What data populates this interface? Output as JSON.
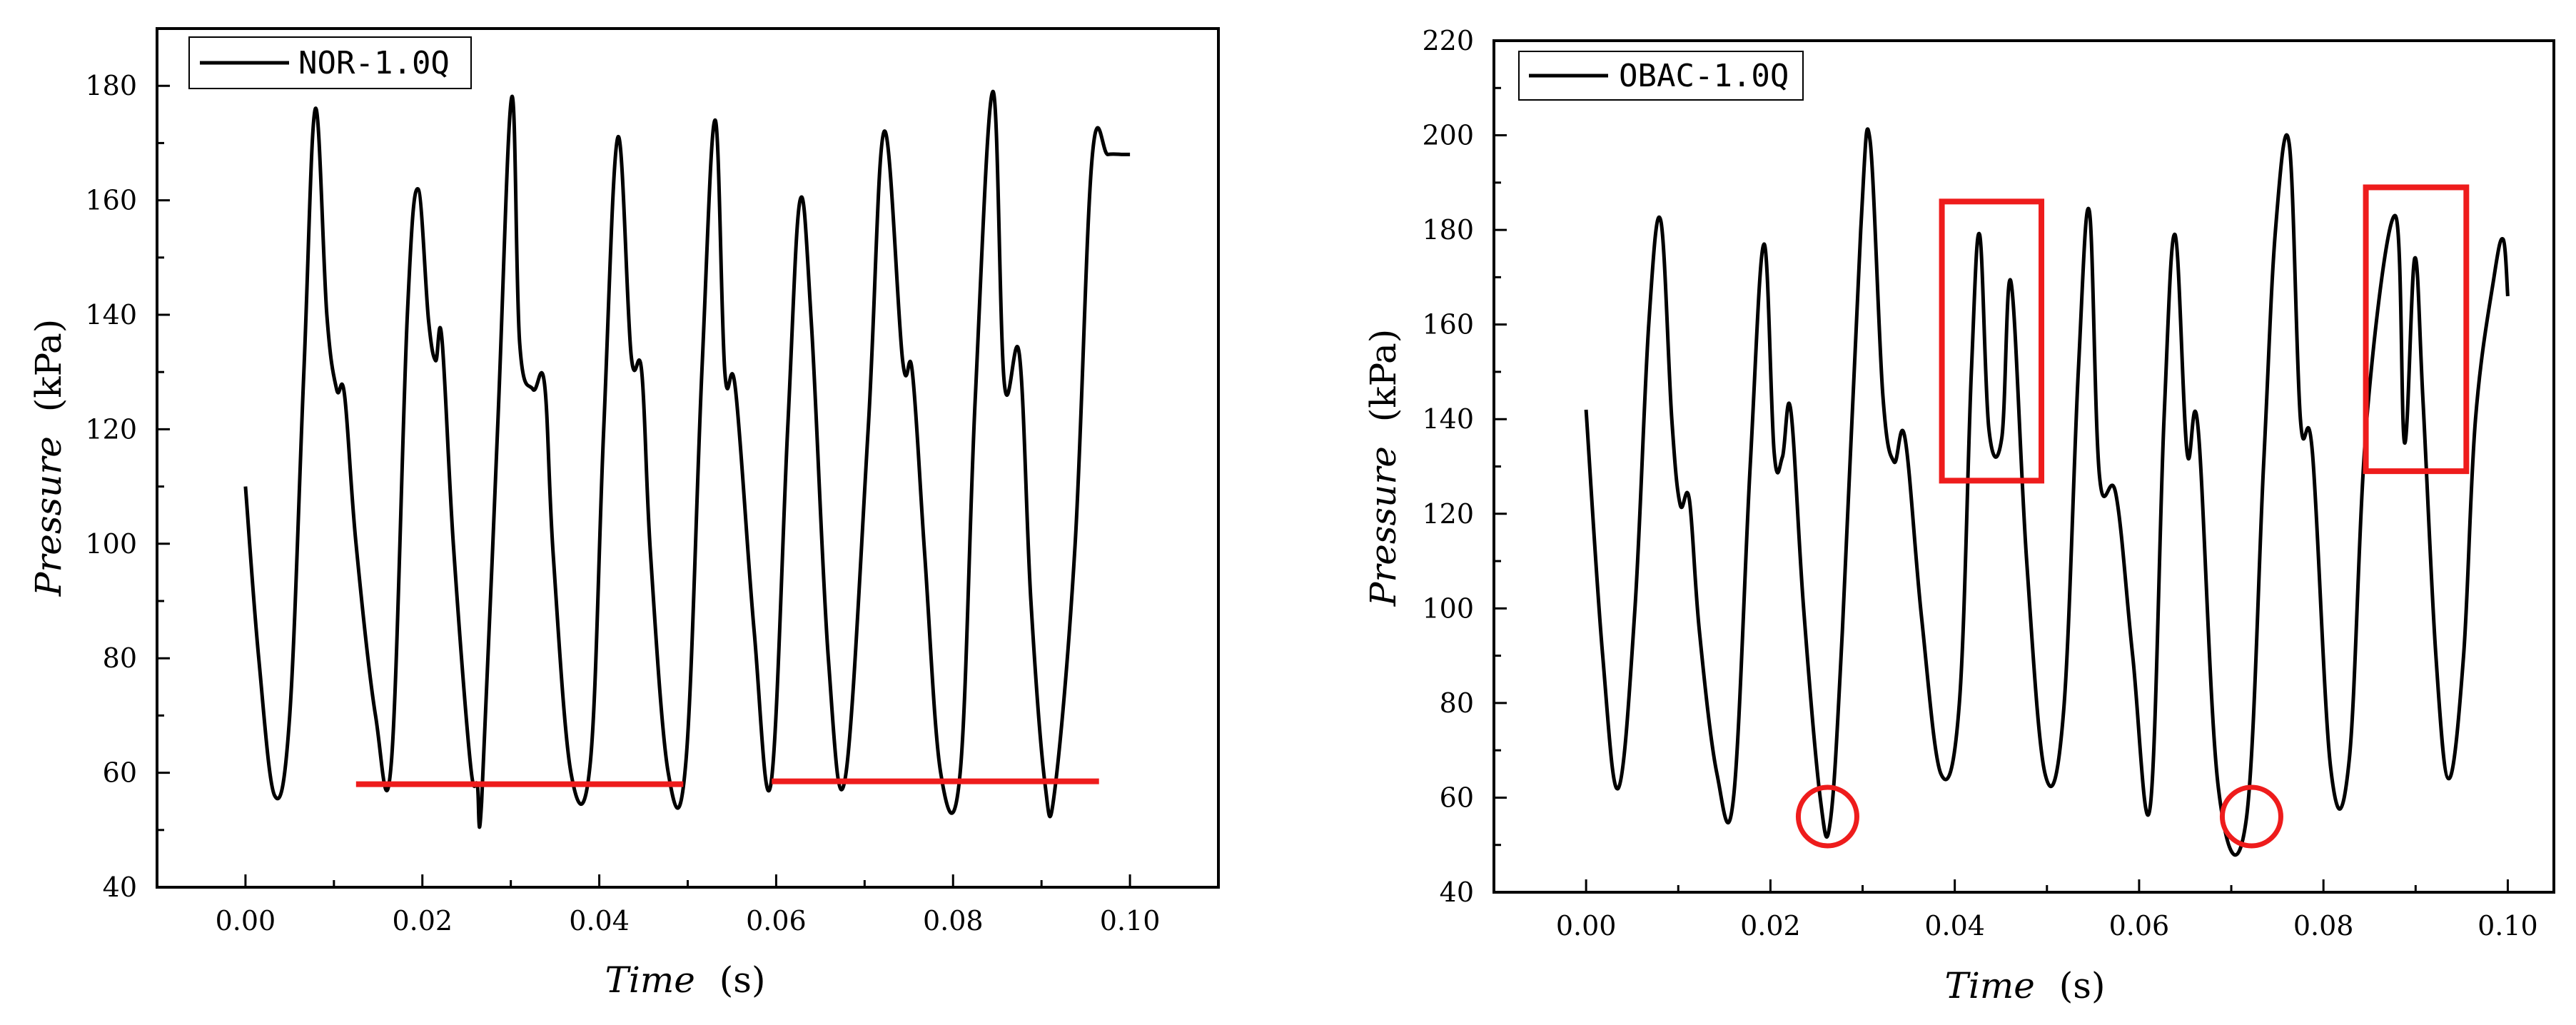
{
  "chart_data": [
    {
      "type": "line",
      "legend_position": "top-left",
      "xlabel_var": "Time",
      "xlabel_unit": "(s)",
      "ylabel_var": "Pressure",
      "ylabel_unit": "(kPa)",
      "xlim": [
        -0.01,
        0.11
      ],
      "ylim": [
        40,
        190
      ],
      "xticks": [
        0.0,
        0.02,
        0.04,
        0.06,
        0.08,
        0.1
      ],
      "xtick_labels": [
        "0.00",
        "0.02",
        "0.04",
        "0.06",
        "0.08",
        "0.10"
      ],
      "yticks": [
        40,
        60,
        80,
        100,
        120,
        140,
        160,
        180
      ],
      "ytick_labels": [
        "40",
        "60",
        "80",
        "100",
        "120",
        "140",
        "160",
        "180"
      ],
      "grid": false,
      "series": [
        {
          "name": "NOR-1.0Q",
          "color": "#000000",
          "x": [
            0.0,
            0.0015,
            0.0033,
            0.005,
            0.0066,
            0.0079,
            0.0092,
            0.0103,
            0.0112,
            0.0125,
            0.0147,
            0.0165,
            0.0183,
            0.0195,
            0.0207,
            0.0215,
            0.0222,
            0.0235,
            0.0254,
            0.0262,
            0.0267,
            0.0285,
            0.0301,
            0.031,
            0.0325,
            0.0338,
            0.0348,
            0.0368,
            0.039,
            0.0405,
            0.0421,
            0.0436,
            0.0448,
            0.0458,
            0.0478,
            0.0498,
            0.0516,
            0.0531,
            0.0542,
            0.0554,
            0.0575,
            0.0594,
            0.0613,
            0.0627,
            0.064,
            0.0659,
            0.0678,
            0.0704,
            0.0722,
            0.0743,
            0.0754,
            0.0768,
            0.0786,
            0.0808,
            0.0825,
            0.0845,
            0.0858,
            0.0875,
            0.0888,
            0.0904,
            0.0915,
            0.0938,
            0.0957,
            0.0975,
            0.0992,
            0.1
          ],
          "y": [
            110,
            80,
            56,
            70,
            130,
            176,
            140,
            127,
            126,
            100,
            70,
            62,
            140,
            162,
            139,
            132,
            136,
            100,
            62,
            58,
            55,
            120,
            178,
            135,
            127,
            128,
            98,
            60,
            62,
            120,
            171,
            133,
            130,
            98,
            60,
            62,
            130,
            174,
            130,
            127,
            85,
            58,
            120,
            160,
            138,
            80,
            59,
            120,
            172,
            132,
            130,
            98,
            60,
            60,
            125,
            179,
            128,
            133,
            90,
            58,
            57,
            100,
            167,
            168,
            168,
            168
          ]
        }
      ],
      "annotations": [
        {
          "type": "horizontal-line",
          "color": "#ee1c1c",
          "x": [
            0.0125,
            0.0495
          ],
          "y": 58
        },
        {
          "type": "horizontal-line",
          "color": "#ee1c1c",
          "x": [
            0.0595,
            0.0965
          ],
          "y": 58.5
        }
      ]
    },
    {
      "type": "line",
      "legend_position": "top-left",
      "xlabel_var": "Time",
      "xlabel_unit": "(s)",
      "ylabel_var": "Pressure",
      "ylabel_unit": "(kPa)",
      "xlim": [
        -0.01,
        0.105
      ],
      "ylim": [
        40,
        220
      ],
      "xticks": [
        0.0,
        0.02,
        0.04,
        0.06,
        0.08,
        0.1
      ],
      "xtick_labels": [
        "0.00",
        "0.02",
        "0.04",
        "0.06",
        "0.08",
        "0.10"
      ],
      "yticks": [
        40,
        60,
        80,
        100,
        120,
        140,
        160,
        180,
        200,
        220
      ],
      "ytick_labels": [
        "40",
        "60",
        "80",
        "100",
        "120",
        "140",
        "160",
        "180",
        "200",
        "220"
      ],
      "grid": false,
      "series": [
        {
          "name": "OBAC-1.0Q",
          "color": "#000000",
          "x": [
            0.0,
            0.0018,
            0.0035,
            0.0053,
            0.0068,
            0.0081,
            0.0093,
            0.0102,
            0.0112,
            0.0123,
            0.0142,
            0.016,
            0.0178,
            0.0193,
            0.0204,
            0.0213,
            0.0222,
            0.0236,
            0.0254,
            0.0265,
            0.0278,
            0.0298,
            0.0308,
            0.0322,
            0.0334,
            0.0346,
            0.0364,
            0.0385,
            0.0405,
            0.0418,
            0.0427,
            0.0437,
            0.0451,
            0.0461,
            0.0478,
            0.0498,
            0.0518,
            0.0534,
            0.0546,
            0.0557,
            0.0575,
            0.0593,
            0.0612,
            0.0627,
            0.0639,
            0.0652,
            0.0664,
            0.0686,
            0.0716,
            0.0735,
            0.0748,
            0.0763,
            0.0775,
            0.0788,
            0.0808,
            0.0828,
            0.0847,
            0.0878,
            0.0888,
            0.0899,
            0.0908,
            0.0922,
            0.0936,
            0.0952,
            0.0965,
            0.0985,
            0.0995,
            0.1
          ],
          "y": [
            142,
            90,
            62,
            100,
            160,
            182,
            140,
            122,
            123,
            95,
            65,
            60,
            130,
            177,
            133,
            132,
            142,
            100,
            60,
            55,
            95,
            180,
            199,
            145,
            131,
            136,
            98,
            65,
            80,
            150,
            179,
            138,
            136,
            169,
            110,
            65,
            78,
            150,
            184,
            128,
            124,
            90,
            58,
            140,
            179,
            133,
            138,
            62,
            55,
            130,
            180,
            198,
            140,
            133,
            66,
            68,
            140,
            183,
            135,
            174,
            144,
            90,
            64,
            90,
            140,
            170,
            178,
            166
          ]
        }
      ],
      "annotations": [
        {
          "type": "rectangle",
          "color": "#ee1c1c",
          "x": [
            0.0386,
            0.0494
          ],
          "y": [
            127,
            186
          ]
        },
        {
          "type": "rectangle",
          "color": "#ee1c1c",
          "x": [
            0.0846,
            0.0955
          ],
          "y": [
            129,
            189
          ]
        },
        {
          "type": "circle",
          "color": "#ee1c1c",
          "x": 0.0262,
          "y": 56
        },
        {
          "type": "circle",
          "color": "#ee1c1c",
          "x": 0.0722,
          "y": 56
        }
      ]
    }
  ]
}
